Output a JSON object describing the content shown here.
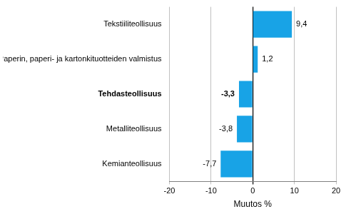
{
  "chart_data": {
    "type": "bar",
    "orientation": "horizontal",
    "categories": [
      "Tekstiiliteollisuus",
      "Paperin, paperi- ja kartonkituotteiden valmistus",
      "Tehdasteollisuus",
      "Metalliteollisuus",
      "Kemianteollisuus"
    ],
    "values": [
      9.4,
      1.2,
      -3.3,
      -3.8,
      -7.7
    ],
    "value_labels": [
      "9,4",
      "1,2",
      "-3,3",
      "-3,8",
      "-7,7"
    ],
    "color": "#18a3e6",
    "xlim": [
      -20,
      20
    ],
    "xticks": [
      -20,
      -10,
      0,
      10,
      20
    ],
    "x_label": "Muutos %",
    "grid": true,
    "data_labels": true
  }
}
